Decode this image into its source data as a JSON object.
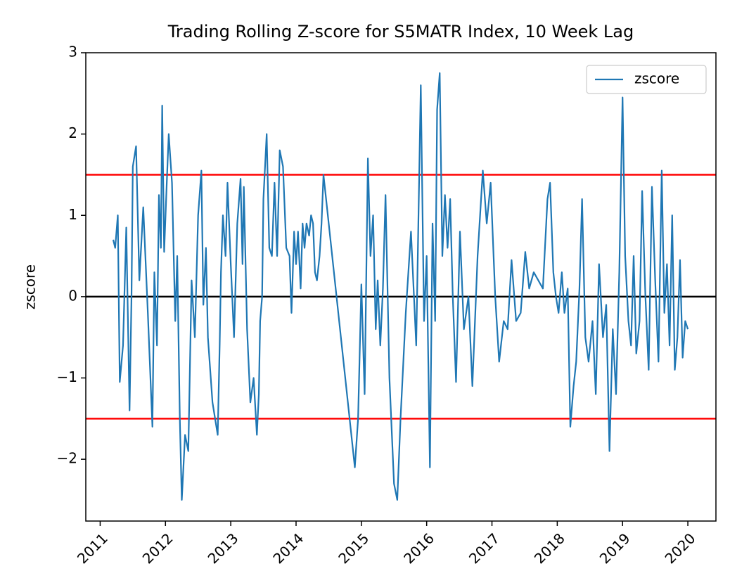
{
  "chart_data": {
    "type": "line",
    "title": "Trading Rolling Z-score for S5MATR Index, 10 Week Lag",
    "y_label": "zscore",
    "legend": "upper right",
    "xlim": [
      2010.78,
      2020.43
    ],
    "xticks": [
      2011,
      2012,
      2013,
      2014,
      2015,
      2016,
      2017,
      2018,
      2019,
      2020
    ],
    "ylim": [
      -2.76,
      3
    ],
    "yticks": [
      {
        "value": -2,
        "label": "−2"
      },
      {
        "value": -1,
        "label": "−1"
      },
      0,
      1,
      2,
      3
    ],
    "hlines": [
      {
        "value": 1.5,
        "color": "#ff0000"
      },
      {
        "value": 0,
        "color": "#000000"
      },
      {
        "value": -1.5,
        "color": "#ff0000"
      }
    ],
    "x": [
      2011.2,
      2011.23,
      2011.27,
      2011.3,
      2011.35,
      2011.4,
      2011.45,
      2011.48,
      2011.5,
      2011.55,
      2011.6,
      2011.66,
      2011.73,
      2011.8,
      2011.83,
      2011.87,
      2011.9,
      2011.93,
      2011.95,
      2011.98,
      2012.02,
      2012.05,
      2012.1,
      2012.15,
      2012.18,
      2012.22,
      2012.25,
      2012.3,
      2012.35,
      2012.4,
      2012.45,
      2012.5,
      2012.55,
      2012.58,
      2012.62,
      2012.65,
      2012.72,
      2012.8,
      2012.83,
      2012.85,
      2012.88,
      2012.92,
      2012.95,
      2013.0,
      2013.05,
      2013.1,
      2013.15,
      2013.18,
      2013.2,
      2013.25,
      2013.3,
      2013.35,
      2013.4,
      2013.43,
      2013.45,
      2013.48,
      2013.5,
      2013.55,
      2013.59,
      2013.63,
      2013.67,
      2013.71,
      2013.75,
      2013.8,
      2013.85,
      2013.9,
      2013.93,
      2013.97,
      2014.0,
      2014.03,
      2014.07,
      2014.1,
      2014.13,
      2014.16,
      2014.2,
      2014.23,
      2014.26,
      2014.29,
      2014.32,
      2014.36,
      2014.39,
      2014.42,
      2014.82,
      2014.9,
      2014.95,
      2015.0,
      2015.05,
      2015.1,
      2015.14,
      2015.18,
      2015.22,
      2015.25,
      2015.29,
      2015.33,
      2015.37,
      2015.43,
      2015.5,
      2015.55,
      2015.6,
      2015.68,
      2015.76,
      2015.84,
      2015.91,
      2015.96,
      2016.0,
      2016.05,
      2016.09,
      2016.13,
      2016.16,
      2016.2,
      2016.24,
      2016.28,
      2016.32,
      2016.36,
      2016.4,
      2016.45,
      2016.51,
      2016.57,
      2016.64,
      2016.7,
      2016.78,
      2016.86,
      2016.92,
      2016.98,
      2017.05,
      2017.11,
      2017.18,
      2017.24,
      2017.3,
      2017.37,
      2017.44,
      2017.51,
      2017.57,
      2017.64,
      2017.71,
      2017.78,
      2017.85,
      2017.89,
      2017.94,
      2017.98,
      2018.02,
      2018.07,
      2018.11,
      2018.16,
      2018.2,
      2018.25,
      2018.29,
      2018.34,
      2018.38,
      2018.43,
      2018.48,
      2018.54,
      2018.59,
      2018.64,
      2018.7,
      2018.75,
      2018.8,
      2018.85,
      2018.9,
      2018.95,
      2019.0,
      2019.04,
      2019.09,
      2019.13,
      2019.17,
      2019.21,
      2019.26,
      2019.3,
      2019.35,
      2019.4,
      2019.45,
      2019.5,
      2019.55,
      2019.6,
      2019.64,
      2019.68,
      2019.72,
      2019.76,
      2019.8,
      2019.84,
      2019.88,
      2019.92,
      2019.96,
      2020.0
    ],
    "series": [
      {
        "name": "zscore",
        "color": "#1f77b4",
        "values": [
          0.7,
          0.6,
          1.0,
          -1.05,
          -0.6,
          0.85,
          -1.4,
          0.0,
          1.6,
          1.85,
          0.2,
          1.1,
          -0.2,
          -1.6,
          0.3,
          -0.6,
          1.25,
          0.6,
          2.35,
          0.55,
          1.4,
          2.0,
          1.4,
          -0.3,
          0.5,
          -1.5,
          -2.5,
          -1.7,
          -1.9,
          0.2,
          -0.5,
          1.0,
          1.55,
          -0.1,
          0.6,
          -0.5,
          -1.3,
          -1.7,
          -0.6,
          0.3,
          1.0,
          0.5,
          1.4,
          0.4,
          -0.5,
          0.9,
          1.45,
          0.4,
          1.35,
          -0.4,
          -1.3,
          -1.0,
          -1.7,
          -1.2,
          -0.3,
          0.0,
          1.2,
          2.0,
          0.6,
          0.5,
          1.4,
          0.5,
          1.8,
          1.6,
          0.6,
          0.5,
          -0.2,
          0.8,
          0.4,
          0.8,
          0.1,
          0.9,
          0.6,
          0.9,
          0.75,
          1.0,
          0.9,
          0.3,
          0.2,
          0.5,
          0.9,
          1.5,
          -1.5,
          -2.1,
          -1.5,
          0.15,
          -1.2,
          1.7,
          0.5,
          1.0,
          -0.4,
          0.2,
          -0.6,
          0.1,
          1.25,
          -1.0,
          -2.3,
          -2.5,
          -1.5,
          -0.2,
          0.8,
          -0.6,
          2.6,
          -0.3,
          0.5,
          -2.1,
          0.9,
          -0.3,
          2.3,
          2.75,
          0.5,
          1.25,
          0.6,
          1.2,
          0.0,
          -1.05,
          0.8,
          -0.4,
          0.0,
          -1.1,
          0.5,
          1.55,
          0.9,
          1.4,
          0.0,
          -0.8,
          -0.3,
          -0.4,
          0.45,
          -0.3,
          -0.2,
          0.55,
          0.1,
          0.3,
          0.2,
          0.1,
          1.2,
          1.4,
          0.3,
          0.0,
          -0.2,
          0.3,
          -0.2,
          0.1,
          -1.6,
          -1.1,
          -0.8,
          0.1,
          1.2,
          -0.5,
          -0.8,
          -0.3,
          -1.2,
          0.4,
          -0.5,
          -0.1,
          -1.9,
          -0.4,
          -1.2,
          0.3,
          2.45,
          0.5,
          -0.3,
          -0.6,
          0.5,
          -0.7,
          -0.3,
          1.3,
          0.0,
          -0.9,
          1.35,
          0.2,
          -0.8,
          1.55,
          -0.2,
          0.4,
          -0.6,
          1.0,
          -0.9,
          -0.5,
          0.45,
          -0.75,
          -0.3,
          -0.4
        ]
      }
    ]
  }
}
